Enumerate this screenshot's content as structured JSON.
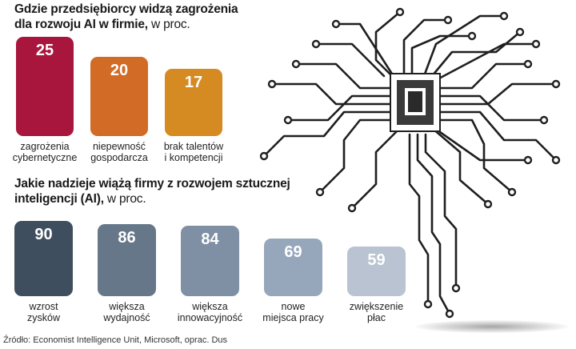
{
  "chart_data": [
    {
      "type": "bar",
      "title": "Gdzie przedsiębiorcy widzą zagrożenia dla rozwoju AI w firmie,",
      "unit": "w proc.",
      "categories": [
        "zagrożenia cybernetyczne",
        "niepewność gospodarcza",
        "brak talentów i kompetencji"
      ],
      "label_lines": [
        [
          "zagrożenia",
          "cybernetyczne"
        ],
        [
          "niepewność",
          "gospodarcza"
        ],
        [
          "brak talentów",
          "i kompetencji"
        ]
      ],
      "values": [
        25,
        20,
        17
      ],
      "value_labels": [
        "25",
        "20",
        "17"
      ],
      "colors": [
        "#a8153d",
        "#d16b26",
        "#d68a22"
      ],
      "ylim": [
        0,
        25
      ]
    },
    {
      "type": "bar",
      "title": "Jakie nadzieje wiążą firmy z rozwojem sztucznej inteligencji (AI),",
      "unit": "w proc.",
      "categories": [
        "wzrost zysków",
        "większa wydajność",
        "większa innowacyjność",
        "nowe miejsca pracy",
        "zwiększenie płac"
      ],
      "label_lines": [
        [
          "wzrost",
          "zysków"
        ],
        [
          "większa",
          "wydajność"
        ],
        [
          "większa",
          "innowacyjność"
        ],
        [
          "nowe",
          "miejsca pracy"
        ],
        [
          "zwiększenie",
          "płac"
        ]
      ],
      "values": [
        90,
        86,
        84,
        69,
        59
      ],
      "value_labels": [
        "90",
        "86",
        "84",
        "69",
        "59"
      ],
      "colors": [
        "#3f4e5e",
        "#667789",
        "#7f90a5",
        "#96a6bb",
        "#b9c3d1"
      ],
      "ylim": [
        0,
        90
      ]
    }
  ],
  "source": "Źródło: Economist Intelligence Unit, Microsoft, oprac. Dus"
}
